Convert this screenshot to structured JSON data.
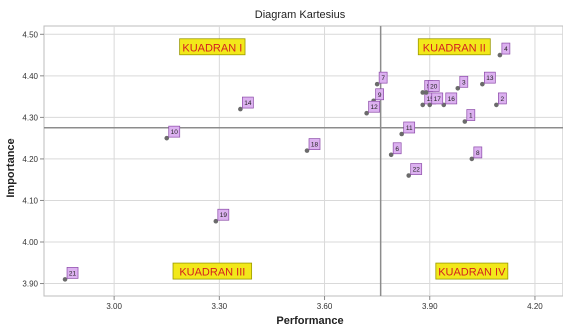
{
  "chart_data": {
    "type": "scatter",
    "title": "Diagram Kartesius",
    "xlabel": "Performance",
    "ylabel": "Importance",
    "xlim": [
      2.8,
      4.28
    ],
    "ylim": [
      3.87,
      4.52
    ],
    "x_ticks": [
      3.0,
      3.3,
      3.6,
      3.9,
      4.2
    ],
    "y_ticks": [
      3.9,
      4.0,
      4.1,
      4.2,
      4.3,
      4.4,
      4.5
    ],
    "grid": true,
    "ref_lines": {
      "x": 3.76,
      "y": 4.275
    },
    "quadrants": [
      {
        "label": "KUADRAN I",
        "x": 3.28,
        "y": 4.47
      },
      {
        "label": "KUADRAN II",
        "x": 3.97,
        "y": 4.47
      },
      {
        "label": "KUADRAN III",
        "x": 3.28,
        "y": 3.93
      },
      {
        "label": "KUADRAN IV",
        "x": 4.02,
        "y": 3.93
      }
    ],
    "points": [
      {
        "label": "1",
        "x": 4.0,
        "y": 4.29
      },
      {
        "label": "2",
        "x": 4.09,
        "y": 4.33
      },
      {
        "label": "3",
        "x": 3.98,
        "y": 4.37
      },
      {
        "label": "4",
        "x": 4.1,
        "y": 4.45
      },
      {
        "label": "5",
        "x": 3.88,
        "y": 4.36
      },
      {
        "label": "6",
        "x": 3.79,
        "y": 4.21
      },
      {
        "label": "7",
        "x": 3.75,
        "y": 4.38
      },
      {
        "label": "8",
        "x": 4.02,
        "y": 4.2
      },
      {
        "label": "9",
        "x": 3.74,
        "y": 4.34
      },
      {
        "label": "10",
        "x": 3.15,
        "y": 4.25
      },
      {
        "label": "11",
        "x": 3.82,
        "y": 4.26
      },
      {
        "label": "12",
        "x": 3.72,
        "y": 4.31
      },
      {
        "label": "13",
        "x": 4.05,
        "y": 4.38
      },
      {
        "label": "14",
        "x": 3.36,
        "y": 4.32
      },
      {
        "label": "15",
        "x": 3.88,
        "y": 4.33
      },
      {
        "label": "16",
        "x": 3.94,
        "y": 4.33
      },
      {
        "label": "17",
        "x": 3.9,
        "y": 4.33
      },
      {
        "label": "18",
        "x": 3.55,
        "y": 4.22
      },
      {
        "label": "19",
        "x": 3.29,
        "y": 4.05
      },
      {
        "label": "20",
        "x": 3.89,
        "y": 4.36
      },
      {
        "label": "21",
        "x": 2.86,
        "y": 3.91
      },
      {
        "label": "22",
        "x": 3.84,
        "y": 4.16
      }
    ],
    "colors": {
      "point": "#6b6b6b",
      "label_fill": "#dcb1f0",
      "label_border": "#8b4aa8",
      "quadrant_fill": "#f2e81a",
      "quadrant_text": "#d42020",
      "grid": "#d9d9d9",
      "ref_line": "#8c8c8c"
    }
  }
}
